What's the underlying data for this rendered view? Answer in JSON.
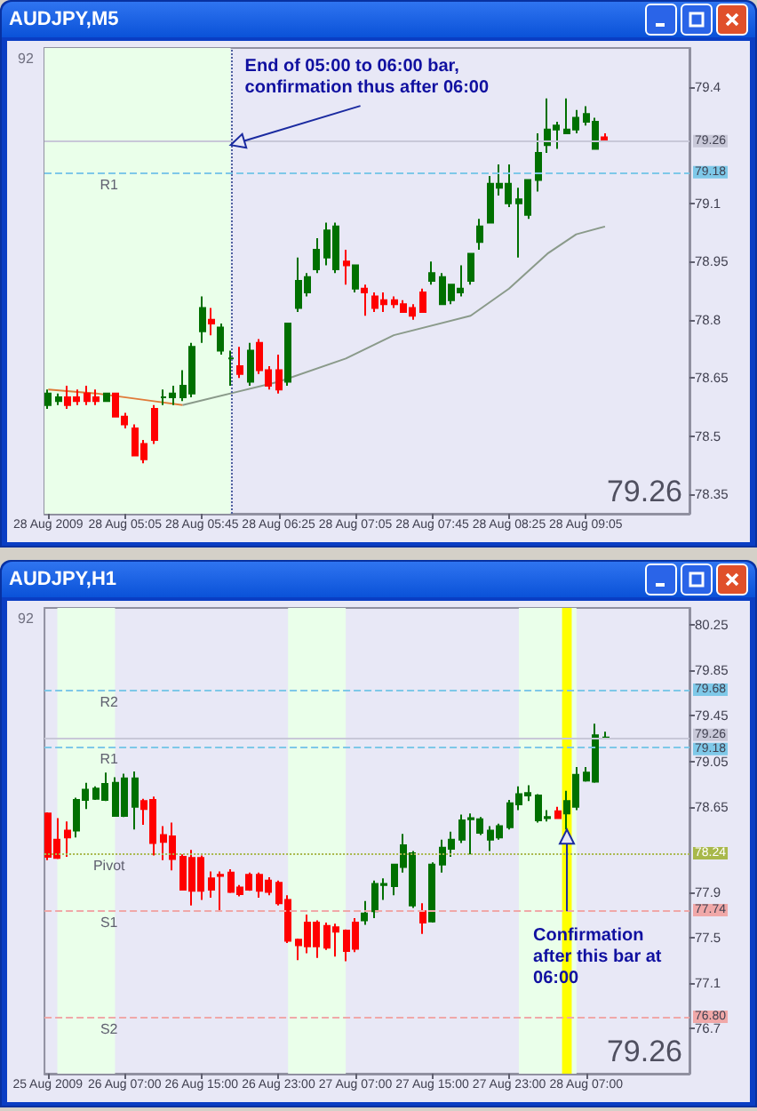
{
  "chart_data": [
    {
      "type": "candlestick",
      "title": "AUDJPY,M5",
      "x": [
        "2009-08-28T04:25",
        "2009-08-28T04:30",
        "2009-08-28T04:35",
        "2009-08-28T04:40",
        "2009-08-28T04:45",
        "2009-08-28T04:50",
        "2009-08-28T04:55",
        "2009-08-28T05:00",
        "2009-08-28T05:05",
        "2009-08-28T05:10",
        "2009-08-28T05:15",
        "2009-08-28T05:20",
        "2009-08-28T05:25",
        "2009-08-28T05:30",
        "2009-08-28T05:35",
        "2009-08-28T05:40",
        "2009-08-28T05:45",
        "2009-08-28T05:50",
        "2009-08-28T05:55",
        "2009-08-28T06:00",
        "2009-08-28T06:05",
        "2009-08-28T06:10",
        "2009-08-28T06:15",
        "2009-08-28T06:20",
        "2009-08-28T06:25",
        "2009-08-28T06:30",
        "2009-08-28T06:35",
        "2009-08-28T06:40",
        "2009-08-28T06:45",
        "2009-08-28T06:50",
        "2009-08-28T06:55",
        "2009-08-28T07:00",
        "2009-08-28T07:05",
        "2009-08-28T07:10",
        "2009-08-28T07:15",
        "2009-08-28T07:20",
        "2009-08-28T07:25",
        "2009-08-28T07:30",
        "2009-08-28T07:35",
        "2009-08-28T07:40",
        "2009-08-28T07:45",
        "2009-08-28T07:50",
        "2009-08-28T07:55",
        "2009-08-28T08:00",
        "2009-08-28T08:05",
        "2009-08-28T08:10",
        "2009-08-28T08:15",
        "2009-08-28T08:20",
        "2009-08-28T08:25",
        "2009-08-28T08:30",
        "2009-08-28T08:35",
        "2009-08-28T08:40",
        "2009-08-28T08:45",
        "2009-08-28T08:50",
        "2009-08-28T08:55",
        "2009-08-28T09:00",
        "2009-08-28T09:05",
        "2009-08-28T09:10",
        "2009-08-28T09:15"
      ],
      "xlim": [
        "2009-08-28T04:23",
        "2009-08-28T09:59"
      ],
      "xticks": [
        {
          "value": "2009-08-28T04:25",
          "label": "28 Aug 2009"
        },
        {
          "value": "2009-08-28T05:05",
          "label": "28 Aug 05:05"
        },
        {
          "value": "2009-08-28T05:45",
          "label": "28 Aug 05:45"
        },
        {
          "value": "2009-08-28T06:25",
          "label": "28 Aug 06:25"
        },
        {
          "value": "2009-08-28T07:05",
          "label": "28 Aug 07:05"
        },
        {
          "value": "2009-08-28T07:45",
          "label": "28 Aug 07:45"
        },
        {
          "value": "2009-08-28T08:25",
          "label": "28 Aug 08:25"
        },
        {
          "value": "2009-08-28T09:05",
          "label": "28 Aug 09:05"
        }
      ],
      "ylim": [
        78.3,
        79.5
      ],
      "yticks": [
        78.35,
        78.5,
        78.65,
        78.8,
        78.95,
        79.1,
        79.4
      ],
      "series": [
        {
          "type": "candlestick",
          "colors": [
            "#007000",
            "#007000",
            "#ff0000",
            "#ff0000",
            "#ff0000",
            "#ff0000",
            "#007000",
            "#ff0000",
            "#ff0000",
            "#ff0000",
            "#ff0000",
            "#ff0000",
            "#007000",
            "#007000",
            "#007000",
            "#007000",
            "#007000",
            "#ff0000",
            "#007000",
            "#007000",
            "#ff0000",
            "#007000",
            "#ff0000",
            "#ff0000",
            "#ff0000",
            "#007000",
            "#007000",
            "#007000",
            "#007000",
            "#007000",
            "#007000",
            "#ff0000",
            "#007000",
            "#ff0000",
            "#ff0000",
            "#ff0000",
            "#ff0000",
            "#ff0000",
            "#ff0000",
            "#ff0000",
            "#007000",
            "#007000",
            "#007000",
            "#007000",
            "#007000",
            "#007000",
            "#007000",
            "#007000",
            "#007000",
            "#007000",
            "#007000",
            "#007000",
            "#007000",
            "#007000",
            "#007000",
            "#007000",
            "#007000",
            "#007000",
            "#ff0000"
          ],
          "ohlc": [
            [
              78.58,
              78.62,
              78.57,
              78.61
            ],
            [
              78.59,
              78.61,
              78.58,
              78.6
            ],
            [
              78.6,
              78.63,
              78.57,
              78.58
            ],
            [
              78.6,
              78.62,
              78.58,
              78.59
            ],
            [
              78.61,
              78.63,
              78.58,
              78.59
            ],
            [
              78.6,
              78.62,
              78.58,
              78.59
            ],
            [
              78.59,
              78.61,
              78.59,
              78.61
            ],
            [
              78.61,
              78.61,
              78.55,
              78.55
            ],
            [
              78.55,
              78.56,
              78.52,
              78.53
            ],
            [
              78.52,
              78.53,
              78.45,
              78.45
            ],
            [
              78.48,
              78.49,
              78.43,
              78.44
            ],
            [
              78.57,
              78.58,
              78.48,
              78.49
            ],
            [
              78.6,
              78.62,
              78.58,
              78.6
            ],
            [
              78.6,
              78.63,
              78.58,
              78.61
            ],
            [
              78.6,
              78.67,
              78.59,
              78.63
            ],
            [
              78.61,
              78.74,
              78.6,
              78.73
            ],
            [
              78.77,
              78.86,
              78.74,
              78.83
            ],
            [
              78.8,
              78.83,
              78.76,
              78.79
            ],
            [
              78.72,
              78.79,
              78.71,
              78.78
            ],
            [
              78.7,
              78.72,
              78.63,
              78.7
            ],
            [
              78.68,
              78.73,
              78.65,
              78.66
            ],
            [
              78.64,
              78.74,
              78.63,
              78.72
            ],
            [
              78.74,
              78.75,
              78.66,
              78.67
            ],
            [
              78.67,
              78.68,
              78.62,
              78.63
            ],
            [
              78.67,
              78.71,
              78.61,
              78.62
            ],
            [
              78.64,
              78.79,
              78.63,
              78.79
            ],
            [
              78.83,
              78.96,
              78.82,
              78.9
            ],
            [
              78.87,
              78.92,
              78.86,
              78.91
            ],
            [
              78.93,
              79.01,
              78.92,
              78.98
            ],
            [
              78.96,
              79.05,
              78.94,
              79.03
            ],
            [
              78.93,
              79.05,
              78.92,
              79.04
            ],
            [
              78.95,
              78.98,
              78.89,
              78.94
            ],
            [
              78.88,
              78.94,
              78.87,
              78.94
            ],
            [
              78.88,
              78.89,
              78.81,
              78.87
            ],
            [
              78.86,
              78.87,
              78.82,
              78.83
            ],
            [
              78.85,
              78.87,
              78.82,
              78.84
            ],
            [
              78.85,
              78.86,
              78.83,
              78.84
            ],
            [
              78.84,
              78.85,
              78.82,
              78.82
            ],
            [
              78.83,
              78.84,
              78.8,
              78.81
            ],
            [
              78.87,
              78.88,
              78.82,
              78.82
            ],
            [
              78.9,
              78.95,
              78.89,
              78.92
            ],
            [
              78.84,
              78.92,
              78.84,
              78.91
            ],
            [
              78.85,
              78.89,
              78.84,
              78.89
            ],
            [
              78.87,
              78.94,
              78.86,
              78.88
            ],
            [
              78.9,
              78.97,
              78.89,
              78.97
            ],
            [
              79.0,
              79.06,
              78.98,
              79.04
            ],
            [
              79.05,
              79.17,
              79.05,
              79.15
            ],
            [
              79.14,
              79.2,
              79.12,
              79.15
            ],
            [
              79.1,
              79.2,
              79.09,
              79.15
            ],
            [
              79.1,
              79.14,
              78.96,
              79.11
            ],
            [
              79.07,
              79.16,
              79.06,
              79.16
            ],
            [
              79.16,
              79.28,
              79.13,
              79.23
            ],
            [
              79.25,
              79.37,
              79.23,
              79.29
            ],
            [
              79.29,
              79.31,
              79.24,
              79.3
            ],
            [
              79.28,
              79.37,
              79.28,
              79.29
            ],
            [
              79.29,
              79.34,
              79.28,
              79.32
            ],
            [
              79.31,
              79.35,
              79.3,
              79.33
            ],
            [
              79.24,
              79.32,
              79.24,
              79.31
            ],
            [
              79.27,
              79.28,
              79.26,
              79.26
            ]
          ]
        },
        {
          "type": "line",
          "color": "#e07b39",
          "x": [
            "2009-08-28T04:25",
            "2009-08-28T04:50",
            "2009-08-28T05:20",
            "2009-08-28T05:35"
          ],
          "values": [
            78.62,
            78.61,
            78.59,
            78.58
          ]
        },
        {
          "type": "line",
          "color": "#8a9a8a",
          "x": [
            "2009-08-28T05:35",
            "2009-08-28T06:00",
            "2009-08-28T06:25",
            "2009-08-28T07:00",
            "2009-08-28T07:25",
            "2009-08-28T08:05",
            "2009-08-28T08:25",
            "2009-08-28T08:45",
            "2009-08-28T09:00",
            "2009-08-28T09:15"
          ],
          "values": [
            78.58,
            78.61,
            78.64,
            78.7,
            78.76,
            78.81,
            78.88,
            78.97,
            79.02,
            79.04
          ]
        }
      ],
      "ref_lines": [
        {
          "axis": "y",
          "value": 79.18,
          "label": "R1",
          "color": "#7ec8e8",
          "line_style": "dashed"
        },
        {
          "axis": "y",
          "value": 79.26,
          "color": "#c8c8d8",
          "line_style": "solid"
        },
        {
          "axis": "x",
          "value": "2009-08-28T06:00",
          "color": "#5060a0",
          "line_style": "dotted"
        }
      ],
      "bands": [
        {
          "axis": "x",
          "from": "2009-08-28T04:23",
          "to": "2009-08-28T06:00",
          "color": "#eaffea"
        }
      ],
      "annotations": [
        "92",
        "79.26",
        {
          "text": "79.18",
          "y": 79.18
        },
        {
          "text": "79.26",
          "y": 79.26
        },
        {
          "text": "End of 05:00 to 06:00 bar,\nconfirmation thus after 06:00",
          "x": "2009-08-28T06:00",
          "y": 79.25
        }
      ]
    },
    {
      "type": "candlestick",
      "title": "AUDJPY,H1",
      "x": [
        "2009-08-25T23:00",
        "2009-08-26T00:00",
        "2009-08-26T01:00",
        "2009-08-26T02:00",
        "2009-08-26T03:00",
        "2009-08-26T04:00",
        "2009-08-26T05:00",
        "2009-08-26T06:00",
        "2009-08-26T07:00",
        "2009-08-26T08:00",
        "2009-08-26T09:00",
        "2009-08-26T10:00",
        "2009-08-26T11:00",
        "2009-08-26T12:00",
        "2009-08-26T13:00",
        "2009-08-26T14:00",
        "2009-08-26T15:00",
        "2009-08-26T16:00",
        "2009-08-26T17:00",
        "2009-08-26T18:00",
        "2009-08-26T19:00",
        "2009-08-26T20:00",
        "2009-08-26T21:00",
        "2009-08-26T22:00",
        "2009-08-26T23:00",
        "2009-08-27T00:00",
        "2009-08-27T01:00",
        "2009-08-27T02:00",
        "2009-08-27T03:00",
        "2009-08-27T04:00",
        "2009-08-27T05:00",
        "2009-08-27T06:00",
        "2009-08-27T07:00",
        "2009-08-27T08:00",
        "2009-08-27T09:00",
        "2009-08-27T10:00",
        "2009-08-27T11:00",
        "2009-08-27T12:00",
        "2009-08-27T13:00",
        "2009-08-27T14:00",
        "2009-08-27T15:00",
        "2009-08-27T16:00",
        "2009-08-27T17:00",
        "2009-08-27T18:00",
        "2009-08-27T19:00",
        "2009-08-27T20:00",
        "2009-08-27T21:00",
        "2009-08-27T22:00",
        "2009-08-27T23:00",
        "2009-08-28T00:00",
        "2009-08-28T01:00",
        "2009-08-28T02:00",
        "2009-08-28T03:00",
        "2009-08-28T04:00",
        "2009-08-28T05:00",
        "2009-08-28T06:00",
        "2009-08-28T07:00",
        "2009-08-28T08:00",
        "2009-08-28T09:00"
      ],
      "xlim": [
        "2009-08-25T22:40",
        "2009-08-28T17:45"
      ],
      "xticks": [
        {
          "value": "2009-08-25T23:00",
          "label": "25 Aug 2009"
        },
        {
          "value": "2009-08-26T07:00",
          "label": "26 Aug 07:00"
        },
        {
          "value": "2009-08-26T15:00",
          "label": "26 Aug 15:00"
        },
        {
          "value": "2009-08-26T23:00",
          "label": "26 Aug 23:00"
        },
        {
          "value": "2009-08-27T07:00",
          "label": "27 Aug 07:00"
        },
        {
          "value": "2009-08-27T15:00",
          "label": "27 Aug 15:00"
        },
        {
          "value": "2009-08-27T23:00",
          "label": "27 Aug 23:00"
        },
        {
          "value": "2009-08-28T07:00",
          "label": "28 Aug 07:00"
        }
      ],
      "ylim": [
        76.3,
        80.4
      ],
      "yticks": [
        76.7,
        77.1,
        77.5,
        77.9,
        78.65,
        79.05,
        79.45,
        79.85,
        80.25
      ],
      "series": [
        {
          "type": "candlestick",
          "colors": [
            "#ff0000",
            "#ff0000",
            "#ff0000",
            "#007000",
            "#007000",
            "#007000",
            "#007000",
            "#007000",
            "#007000",
            "#007000",
            "#ff0000",
            "#ff0000",
            "#ff0000",
            "#ff0000",
            "#ff0000",
            "#ff0000",
            "#ff0000",
            "#ff0000",
            "#ff0000",
            "#ff0000",
            "#ff0000",
            "#ff0000",
            "#ff0000",
            "#ff0000",
            "#ff0000",
            "#ff0000",
            "#ff0000",
            "#ff0000",
            "#ff0000",
            "#ff0000",
            "#ff0000",
            "#ff0000",
            "#ff0000",
            "#007000",
            "#007000",
            "#007000",
            "#007000",
            "#007000",
            "#007000",
            "#ff0000",
            "#007000",
            "#007000",
            "#007000",
            "#007000",
            "#007000",
            "#007000",
            "#007000",
            "#007000",
            "#007000",
            "#007000",
            "#007000",
            "#007000",
            "#007000",
            "#ff0000",
            "#007000",
            "#007000",
            "#007000",
            "#007000",
            "#007000"
          ],
          "ohlc": [
            [
              78.59,
              78.6,
              78.18,
              78.21
            ],
            [
              78.36,
              78.55,
              78.19,
              78.2
            ],
            [
              78.44,
              78.52,
              78.21,
              78.38
            ],
            [
              78.44,
              78.73,
              78.38,
              78.71
            ],
            [
              78.71,
              78.86,
              78.63,
              78.8
            ],
            [
              78.72,
              78.83,
              78.71,
              78.81
            ],
            [
              78.71,
              78.95,
              78.7,
              78.85
            ],
            [
              78.57,
              78.91,
              78.57,
              78.86
            ],
            [
              78.57,
              78.94,
              78.56,
              78.9
            ],
            [
              78.65,
              78.96,
              78.45,
              78.9
            ],
            [
              78.7,
              78.72,
              78.49,
              78.63
            ],
            [
              78.71,
              78.74,
              78.22,
              78.33
            ],
            [
              78.4,
              78.48,
              78.18,
              78.34
            ],
            [
              78.39,
              78.51,
              78.09,
              78.19
            ],
            [
              78.21,
              78.23,
              77.92,
              77.92
            ],
            [
              78.2,
              78.27,
              77.78,
              77.91
            ],
            [
              78.2,
              78.22,
              77.83,
              77.91
            ],
            [
              78.02,
              78.08,
              77.85,
              77.92
            ],
            [
              78.05,
              78.08,
              77.73,
              78.04
            ],
            [
              78.07,
              78.1,
              77.89,
              77.9
            ],
            [
              77.94,
              77.96,
              77.86,
              77.88
            ],
            [
              78.05,
              78.07,
              77.91,
              77.92
            ],
            [
              78.05,
              78.07,
              77.85,
              77.91
            ],
            [
              78.0,
              78.03,
              77.87,
              77.9
            ],
            [
              77.98,
              78.0,
              77.78,
              77.8
            ],
            [
              77.83,
              77.87,
              77.45,
              77.47
            ],
            [
              77.48,
              77.49,
              77.3,
              77.43
            ],
            [
              77.63,
              77.7,
              77.36,
              77.42
            ],
            [
              77.63,
              77.65,
              77.32,
              77.42
            ],
            [
              77.6,
              77.63,
              77.39,
              77.41
            ],
            [
              77.59,
              77.62,
              77.33,
              77.55
            ],
            [
              77.56,
              77.57,
              77.29,
              77.38
            ],
            [
              77.63,
              77.67,
              77.37,
              77.4
            ],
            [
              77.65,
              77.82,
              77.61,
              77.71
            ],
            [
              77.73,
              78.0,
              77.67,
              77.97
            ],
            [
              77.96,
              78.02,
              77.83,
              77.97
            ],
            [
              77.95,
              78.14,
              77.87,
              78.14
            ],
            [
              78.12,
              78.41,
              78.07,
              78.31
            ],
            [
              77.78,
              78.26,
              77.76,
              78.24
            ],
            [
              77.73,
              77.8,
              77.53,
              77.63
            ],
            [
              77.64,
              78.16,
              77.63,
              78.14
            ],
            [
              78.14,
              78.36,
              78.07,
              78.29
            ],
            [
              78.28,
              78.43,
              78.21,
              78.36
            ],
            [
              78.36,
              78.58,
              78.33,
              78.53
            ],
            [
              78.54,
              78.59,
              78.23,
              78.55
            ],
            [
              78.42,
              78.56,
              78.4,
              78.54
            ],
            [
              78.36,
              78.48,
              78.26,
              78.44
            ],
            [
              78.38,
              78.5,
              78.36,
              78.48
            ],
            [
              78.47,
              78.71,
              78.45,
              78.68
            ],
            [
              78.67,
              78.83,
              78.62,
              78.76
            ],
            [
              78.75,
              78.84,
              78.7,
              78.77
            ],
            [
              78.53,
              78.76,
              78.51,
              78.75
            ],
            [
              78.55,
              78.62,
              78.52,
              78.56
            ],
            [
              78.61,
              78.65,
              78.55,
              78.55
            ],
            [
              78.59,
              78.79,
              78.45,
              78.7
            ],
            [
              78.65,
              79.0,
              78.62,
              78.93
            ],
            [
              78.88,
              79.0,
              78.87,
              78.95
            ],
            [
              78.87,
              79.38,
              78.86,
              79.28
            ],
            [
              79.25,
              79.31,
              79.25,
              79.26
            ]
          ]
        }
      ],
      "ref_lines": [
        {
          "axis": "y",
          "value": 79.68,
          "label": "R2",
          "color": "#7ec8e8",
          "line_style": "dashed"
        },
        {
          "axis": "y",
          "value": 79.18,
          "label": "R1",
          "color": "#7ec8e8",
          "line_style": "dashed"
        },
        {
          "axis": "y",
          "value": 79.26,
          "color": "#c8c8d8",
          "line_style": "solid"
        },
        {
          "axis": "y",
          "value": 78.24,
          "label": "Pivot",
          "color": "#a8b84a",
          "line_style": "dotted"
        },
        {
          "axis": "y",
          "value": 77.74,
          "label": "S1",
          "color": "#f0a8a8",
          "line_style": "dashed"
        },
        {
          "axis": "y",
          "value": 76.8,
          "label": "S2",
          "color": "#f0a8a8",
          "line_style": "dashed"
        }
      ],
      "bands": [
        {
          "axis": "x",
          "from": "2009-08-26T00:00",
          "to": "2009-08-26T06:00",
          "color": "#eaffea"
        },
        {
          "axis": "x",
          "from": "2009-08-27T00:00",
          "to": "2009-08-27T06:00",
          "color": "#eaffea"
        },
        {
          "axis": "x",
          "from": "2009-08-28T00:00",
          "to": "2009-08-28T06:00",
          "color": "#eaffea"
        },
        {
          "axis": "x",
          "from": "2009-08-28T04:30",
          "to": "2009-08-28T05:30",
          "color": "#ffff00"
        }
      ],
      "annotations": [
        "92",
        "79.26",
        {
          "text": "79.68",
          "y": 79.68
        },
        {
          "text": "79.26",
          "y": 79.26
        },
        {
          "text": "79.18",
          "y": 79.18
        },
        {
          "text": "78.24",
          "y": 78.24
        },
        {
          "text": "77.74",
          "y": 77.74
        },
        {
          "text": "76.80",
          "y": 76.8
        },
        {
          "text": "Confirmation\nafter this bar at\n06:00",
          "x": "2009-08-28T05:00",
          "y": 78.45
        }
      ]
    }
  ]
}
